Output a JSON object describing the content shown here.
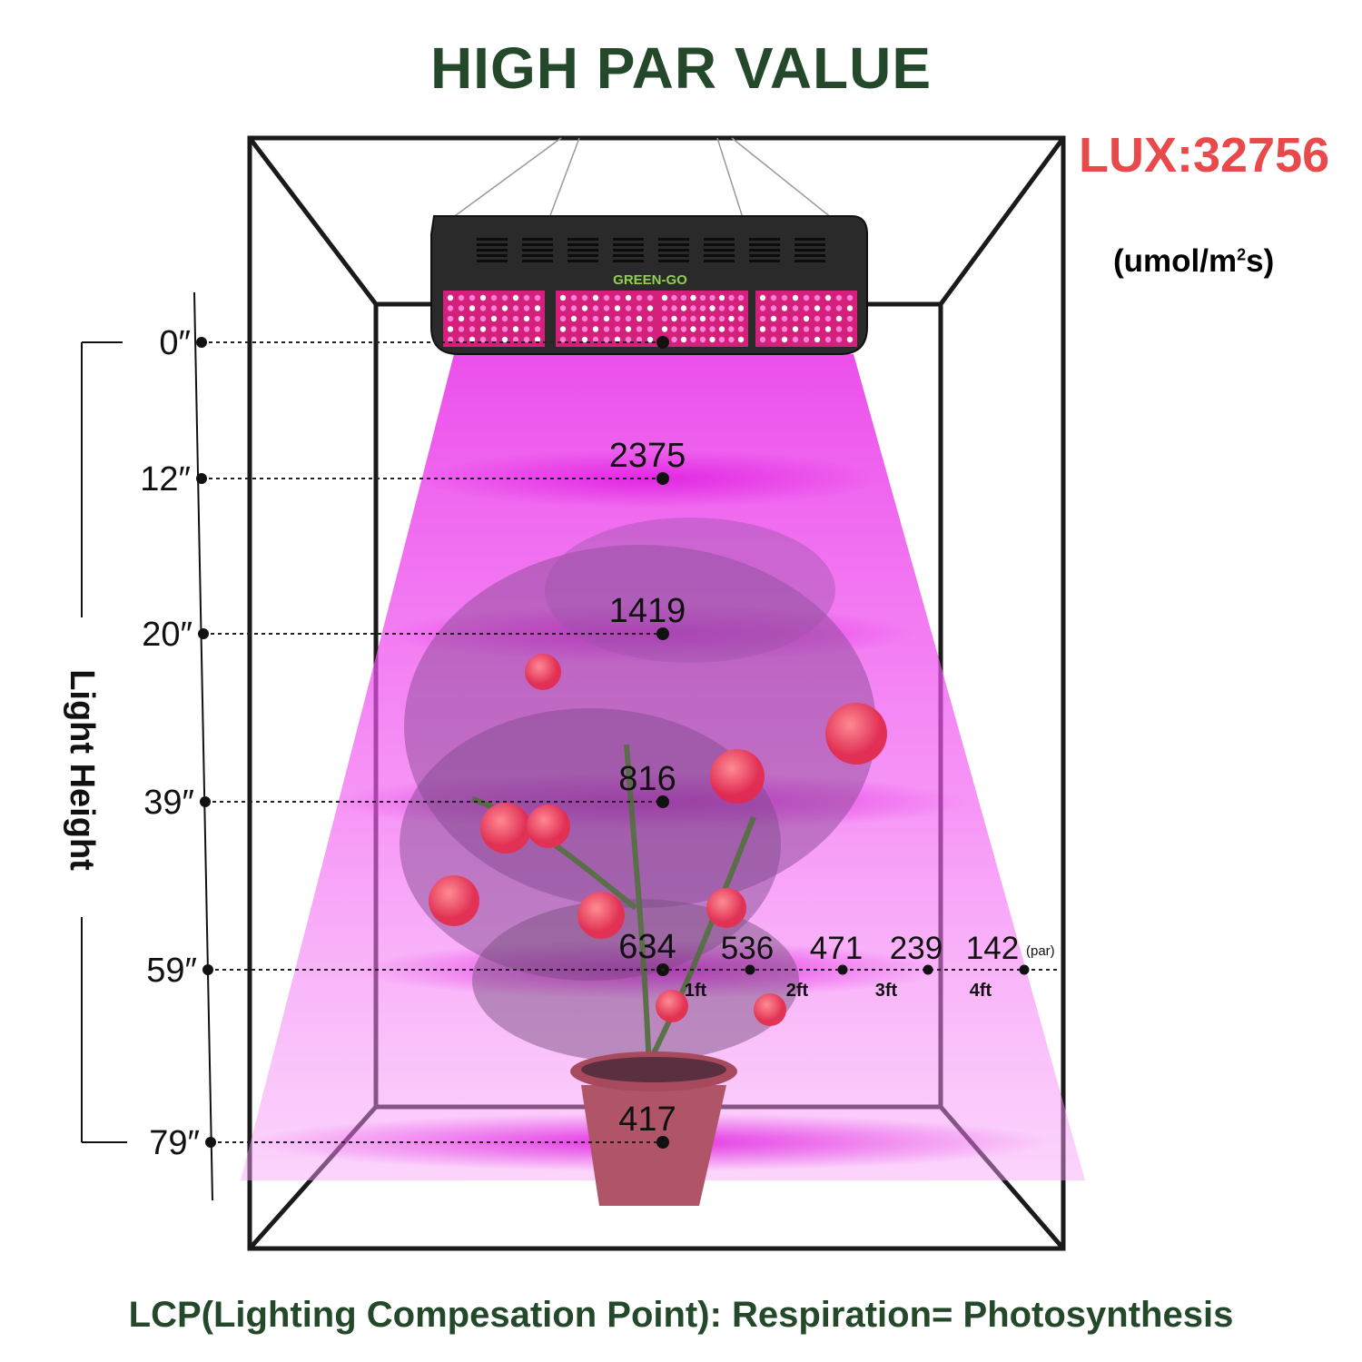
{
  "title": "HIGH PAR VALUE",
  "lux": "LUX:32756",
  "unit_prefix": "(umol/m",
  "unit_sup": "2",
  "unit_suffix": "s)",
  "axis_label": "Light Height",
  "brand": "GREEN-GO",
  "heights": [
    "0″",
    "12″",
    "20″",
    "39″",
    "59″",
    "79″"
  ],
  "par_values": [
    {
      "height": "12″",
      "value": "2375"
    },
    {
      "height": "20″",
      "value": "1419"
    },
    {
      "height": "39″",
      "value": "816"
    },
    {
      "height": "59″",
      "value": "634"
    },
    {
      "height": "79″",
      "value": "417"
    }
  ],
  "spread_59": [
    {
      "value": "536",
      "offset": "1ft"
    },
    {
      "value": "471",
      "offset": "2ft"
    },
    {
      "value": "239",
      "offset": "3ft"
    },
    {
      "value": "142",
      "offset": "4ft"
    }
  ],
  "par_unit": "(par)",
  "footer": "LCP(Lighting Compesation Point): Respiration= Photosynthesis",
  "colors": {
    "title": "#23492a",
    "lux": "#e8494a",
    "light": "#ee00ee",
    "frame": "#1a1a1a"
  }
}
